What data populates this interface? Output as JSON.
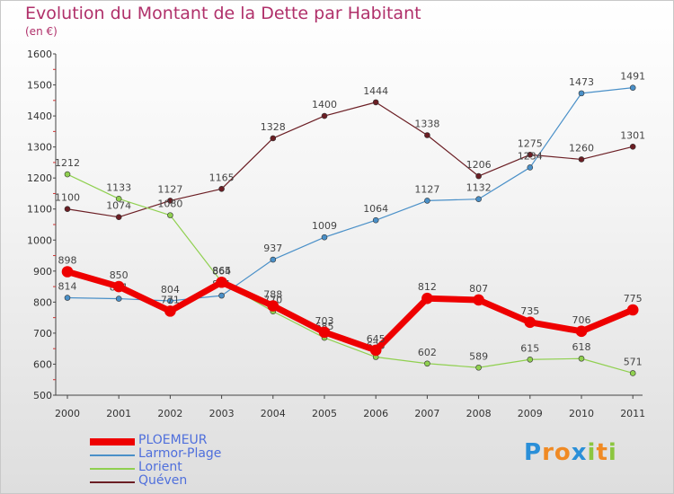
{
  "header": {
    "title": "Evolution du Montant de la Dette par Habitant",
    "subtitle": "(en €)"
  },
  "legend": [
    {
      "name": "PLOEMEUR",
      "color": "#ee0000"
    },
    {
      "name": "Larmor-Plage",
      "color": "#4a90c8"
    },
    {
      "name": "Lorient",
      "color": "#90d050"
    },
    {
      "name": "Quéven",
      "color": "#6b1e24"
    }
  ],
  "logo": {
    "letters": [
      "P",
      "r",
      "o",
      "x",
      "i",
      "t",
      "i"
    ],
    "colors": [
      "#2a8fd8",
      "#f08a24",
      "#f08a24",
      "#2a8fd8",
      "#8cc63f",
      "#f08a24",
      "#8cc63f"
    ]
  },
  "chart_data": {
    "type": "line",
    "title": "Evolution du Montant de la Dette par Habitant",
    "subtitle": "(en €)",
    "x": [
      "2000",
      "2001",
      "2002",
      "2003",
      "2004",
      "2005",
      "2006",
      "2007",
      "2008",
      "2009",
      "2010",
      "2011"
    ],
    "ylim": [
      500,
      1600
    ],
    "yticks": [
      "500",
      "600",
      "700",
      "800",
      "900",
      "1000",
      "1100",
      "1200",
      "1300",
      "1400",
      "1500",
      "1600"
    ],
    "grid": false,
    "legend_position": "bottom-left",
    "series": [
      {
        "name": "Quéven",
        "color": "#6b1e24",
        "width": 1.2,
        "values": [
          1100,
          1074,
          1127,
          1165,
          1328,
          1400,
          1444,
          1338,
          1206,
          1275,
          1260,
          1301
        ],
        "labels": [
          "1100",
          "1074",
          "1127",
          "1165",
          "1328",
          "1400",
          "1444",
          "1338",
          "1206",
          "1275",
          "1260",
          "1301"
        ]
      },
      {
        "name": "Larmor-Plage",
        "color": "#4a90c8",
        "width": 1.2,
        "values": [
          814,
          811,
          804,
          821,
          937,
          1009,
          1064,
          1127,
          1132,
          1234,
          1473,
          1491
        ],
        "labels": [
          "814",
          "811",
          "804",
          "821",
          "937",
          "1009",
          "1064",
          "1127",
          "1132",
          "1234",
          "1473",
          "1491"
        ]
      },
      {
        "name": "Lorient",
        "color": "#90d050",
        "width": 1.2,
        "values": [
          1212,
          1133,
          1080,
          865,
          770,
          685,
          623,
          602,
          589,
          615,
          618,
          571
        ],
        "labels": [
          "1212",
          "1133",
          "1080",
          "865",
          "770",
          "685",
          "623",
          "602",
          "589",
          "615",
          "618",
          "571"
        ]
      },
      {
        "name": "PLOEMEUR",
        "color": "#ee0000",
        "width": 7,
        "values": [
          898,
          850,
          771,
          864,
          788,
          703,
          645,
          812,
          807,
          735,
          706,
          775
        ],
        "labels": [
          "898",
          "850",
          "771",
          "864",
          "788",
          "703",
          "645",
          "812",
          "807",
          "735",
          "706",
          "775"
        ]
      }
    ]
  }
}
